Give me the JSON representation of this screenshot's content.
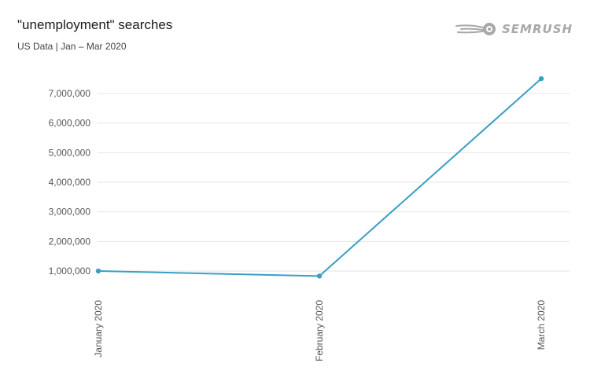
{
  "header": {
    "title": "\"unemployment\" searches",
    "subtitle": "US Data | Jan – Mar 2020"
  },
  "brand": {
    "name": "SEMRUSH",
    "icon": "semrush-fireball-icon",
    "color": "#a8a8a8"
  },
  "colors": {
    "series": "#3a9fc4",
    "grid": "#e6e6e6"
  },
  "chart_data": {
    "type": "line",
    "title": "\"unemployment\" searches",
    "subtitle": "US Data | Jan – Mar 2020",
    "categories": [
      "January 2020",
      "February 2020",
      "March 2020"
    ],
    "series": [
      {
        "values": [
          1000000,
          830000,
          7500000
        ]
      }
    ],
    "ylim": [
      1000000,
      7000000
    ],
    "yticks": [
      1000000,
      2000000,
      3000000,
      4000000,
      5000000,
      6000000,
      7000000
    ],
    "ytick_labels": [
      "1,000,000",
      "2,000,000",
      "3,000,000",
      "4,000,000",
      "5,000,000",
      "6,000,000",
      "7,000,000"
    ],
    "xlabel": "",
    "ylabel": "",
    "grid": true,
    "legend": "none"
  }
}
